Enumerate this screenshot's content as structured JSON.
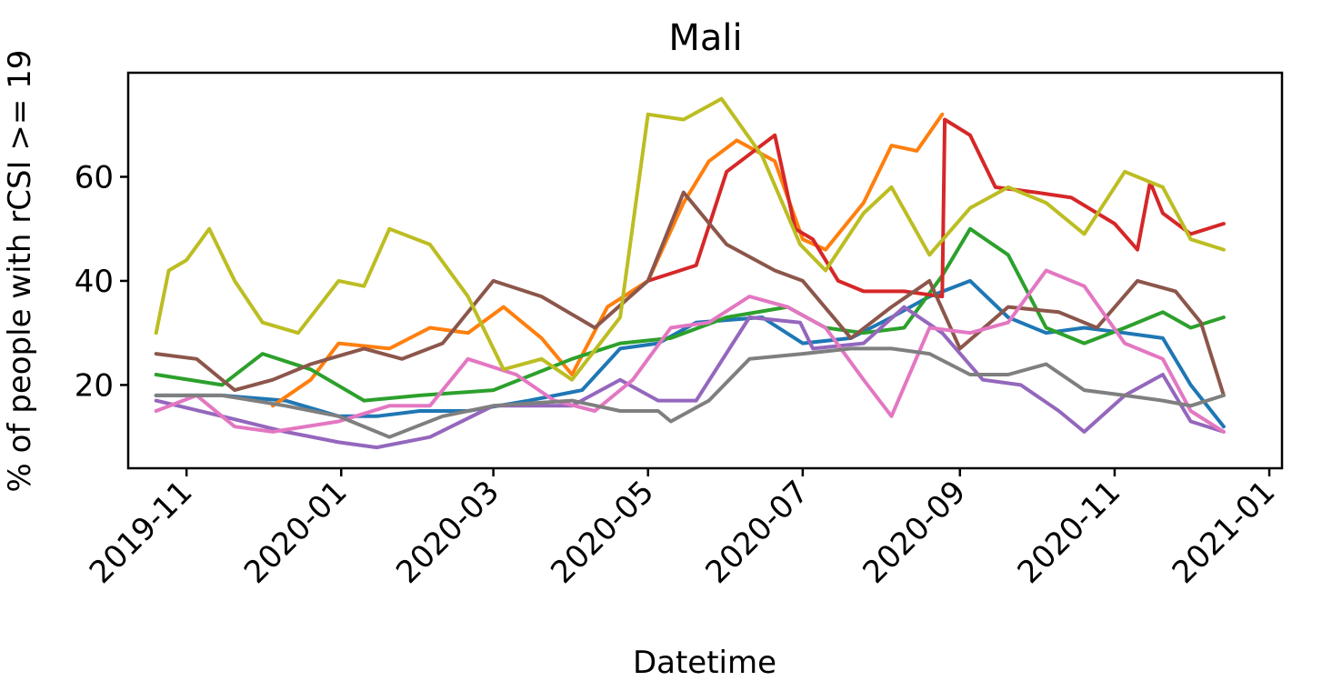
{
  "chart_data": {
    "type": "line",
    "title": "Mali",
    "xlabel": "Datetime",
    "ylabel": "% of people with rCSI >= 19",
    "xlim": [
      "2019-10-09",
      "2021-01-06"
    ],
    "ylim": [
      4,
      80
    ],
    "x_ticks": [
      "2019-11-01",
      "2020-01-01",
      "2020-03-01",
      "2020-05-01",
      "2020-07-01",
      "2020-09-01",
      "2020-11-01",
      "2021-01-01"
    ],
    "x_tick_labels": [
      "2019-11",
      "2020-01",
      "2020-03",
      "2020-05",
      "2020-07",
      "2020-09",
      "2020-11",
      "2021-01"
    ],
    "y_ticks": [
      20,
      40,
      60
    ],
    "grid": false,
    "legend": false,
    "series": [
      {
        "color": "#1f77b4",
        "x": [
          "2019-10-20",
          "2019-11-15",
          "2019-12-10",
          "2019-12-31",
          "2020-01-15",
          "2020-02-01",
          "2020-02-20",
          "2020-03-15",
          "2020-04-05",
          "2020-04-20",
          "2020-05-05",
          "2020-05-20",
          "2020-06-15",
          "2020-07-01",
          "2020-07-20",
          "2020-08-05",
          "2020-08-20",
          "2020-09-05",
          "2020-09-20",
          "2020-10-05",
          "2020-10-20",
          "2020-11-05",
          "2020-11-20",
          "2020-12-01",
          "2020-12-14"
        ],
        "y": [
          18,
          18,
          17,
          14,
          14,
          15,
          15,
          17,
          19,
          27,
          28,
          32,
          33,
          28,
          29,
          33,
          37,
          40,
          33,
          30,
          31,
          30,
          29,
          20,
          12
        ]
      },
      {
        "color": "#ff7f0e",
        "x": [
          "2019-12-05",
          "2019-12-20",
          "2019-12-31",
          "2020-01-20",
          "2020-02-05",
          "2020-02-20",
          "2020-03-05",
          "2020-03-20",
          "2020-04-01",
          "2020-04-15",
          "2020-05-01",
          "2020-05-15",
          "2020-05-25",
          "2020-06-05",
          "2020-06-20",
          "2020-07-01",
          "2020-07-10",
          "2020-07-25",
          "2020-08-05",
          "2020-08-15",
          "2020-08-25"
        ],
        "y": [
          16,
          21,
          28,
          27,
          31,
          30,
          35,
          29,
          22,
          35,
          40,
          55,
          63,
          67,
          63,
          48,
          46,
          55,
          66,
          65,
          72
        ]
      },
      {
        "color": "#2ca02c",
        "x": [
          "2019-10-20",
          "2019-11-15",
          "2019-12-01",
          "2019-12-20",
          "2020-01-10",
          "2020-02-01",
          "2020-03-01",
          "2020-04-01",
          "2020-04-20",
          "2020-05-10",
          "2020-06-01",
          "2020-06-25",
          "2020-07-10",
          "2020-07-25",
          "2020-08-10",
          "2020-08-25",
          "2020-09-05",
          "2020-09-20",
          "2020-10-05",
          "2020-10-20",
          "2020-11-05",
          "2020-11-20",
          "2020-12-01",
          "2020-12-14"
        ],
        "y": [
          22,
          20,
          26,
          23,
          17,
          18,
          19,
          25,
          28,
          29,
          33,
          35,
          31,
          30,
          31,
          41,
          50,
          45,
          31,
          28,
          31,
          34,
          31,
          33
        ]
      },
      {
        "color": "#d62728",
        "x": [
          "2020-05-01",
          "2020-05-20",
          "2020-06-01",
          "2020-06-20",
          "2020-06-28",
          "2020-07-05",
          "2020-07-15",
          "2020-07-25",
          "2020-08-10",
          "2020-08-25",
          "2020-08-26",
          "2020-09-05",
          "2020-09-15",
          "2020-10-01",
          "2020-10-15",
          "2020-11-01",
          "2020-11-10",
          "2020-11-15",
          "2020-11-20",
          "2020-12-01",
          "2020-12-14"
        ],
        "y": [
          40,
          43,
          61,
          68,
          50,
          48,
          40,
          38,
          38,
          37,
          71,
          68,
          58,
          57,
          56,
          51,
          46,
          59,
          53,
          49,
          51
        ]
      },
      {
        "color": "#9467bd",
        "x": [
          "2019-10-20",
          "2019-11-15",
          "2019-12-10",
          "2019-12-31",
          "2020-01-15",
          "2020-02-05",
          "2020-03-01",
          "2020-04-01",
          "2020-04-20",
          "2020-05-05",
          "2020-05-20",
          "2020-06-10",
          "2020-06-30",
          "2020-07-05",
          "2020-07-25",
          "2020-08-10",
          "2020-08-25",
          "2020-09-10",
          "2020-09-25",
          "2020-10-10",
          "2020-10-20",
          "2020-11-05",
          "2020-11-20",
          "2020-12-01",
          "2020-12-14"
        ],
        "y": [
          17,
          14,
          11,
          9,
          8,
          10,
          16,
          16,
          21,
          17,
          17,
          33,
          32,
          27,
          28,
          35,
          30,
          21,
          20,
          15,
          11,
          18,
          22,
          13,
          11
        ]
      },
      {
        "color": "#8c564b",
        "x": [
          "2019-10-20",
          "2019-11-05",
          "2019-11-20",
          "2019-12-05",
          "2019-12-20",
          "2020-01-10",
          "2020-01-25",
          "2020-02-10",
          "2020-03-01",
          "2020-03-20",
          "2020-04-10",
          "2020-05-01",
          "2020-05-15",
          "2020-06-01",
          "2020-06-20",
          "2020-07-01",
          "2020-07-20",
          "2020-08-05",
          "2020-08-20",
          "2020-09-01",
          "2020-09-20",
          "2020-10-10",
          "2020-10-25",
          "2020-11-10",
          "2020-11-25",
          "2020-12-05",
          "2020-12-14"
        ],
        "y": [
          26,
          25,
          19,
          21,
          24,
          27,
          25,
          28,
          40,
          37,
          31,
          40,
          57,
          47,
          42,
          40,
          29,
          35,
          40,
          27,
          35,
          34,
          31,
          40,
          38,
          32,
          18
        ]
      },
      {
        "color": "#e377c2",
        "x": [
          "2019-10-20",
          "2019-11-05",
          "2019-11-20",
          "2019-12-05",
          "2019-12-31",
          "2020-01-20",
          "2020-02-05",
          "2020-02-20",
          "2020-03-10",
          "2020-03-25",
          "2020-04-10",
          "2020-04-25",
          "2020-05-10",
          "2020-05-25",
          "2020-06-10",
          "2020-06-25",
          "2020-07-10",
          "2020-07-25",
          "2020-08-05",
          "2020-08-20",
          "2020-09-05",
          "2020-09-20",
          "2020-10-05",
          "2020-10-20",
          "2020-11-05",
          "2020-11-20",
          "2020-12-01",
          "2020-12-14"
        ],
        "y": [
          15,
          18,
          12,
          11,
          13,
          16,
          16,
          25,
          22,
          17,
          15,
          21,
          31,
          32,
          37,
          35,
          31,
          21,
          14,
          31,
          30,
          32,
          42,
          39,
          28,
          25,
          15,
          11
        ]
      },
      {
        "color": "#7f7f7f",
        "x": [
          "2019-10-20",
          "2019-11-15",
          "2019-12-10",
          "2019-12-31",
          "2020-01-20",
          "2020-02-10",
          "2020-03-01",
          "2020-04-01",
          "2020-04-20",
          "2020-05-05",
          "2020-05-10",
          "2020-05-25",
          "2020-06-10",
          "2020-07-01",
          "2020-07-20",
          "2020-08-05",
          "2020-08-20",
          "2020-09-05",
          "2020-09-20",
          "2020-10-05",
          "2020-10-20",
          "2020-11-05",
          "2020-11-20",
          "2020-12-01",
          "2020-12-14"
        ],
        "y": [
          18,
          18,
          16,
          14,
          10,
          14,
          16,
          17,
          15,
          15,
          13,
          17,
          25,
          26,
          27,
          27,
          26,
          22,
          22,
          24,
          19,
          18,
          17,
          16,
          18
        ]
      },
      {
        "color": "#bcbd22",
        "x": [
          "2019-10-20",
          "2019-10-25",
          "2019-11-01",
          "2019-11-10",
          "2019-11-20",
          "2019-12-01",
          "2019-12-15",
          "2019-12-31",
          "2020-01-10",
          "2020-01-20",
          "2020-02-05",
          "2020-02-20",
          "2020-03-05",
          "2020-03-20",
          "2020-04-01",
          "2020-04-20",
          "2020-05-01",
          "2020-05-15",
          "2020-05-30",
          "2020-06-15",
          "2020-06-30",
          "2020-07-10",
          "2020-07-25",
          "2020-08-05",
          "2020-08-20",
          "2020-09-05",
          "2020-09-20",
          "2020-10-05",
          "2020-10-20",
          "2020-11-05",
          "2020-11-20",
          "2020-12-01",
          "2020-12-14"
        ],
        "y": [
          30,
          42,
          44,
          50,
          40,
          32,
          30,
          40,
          39,
          50,
          47,
          37,
          23,
          25,
          21,
          33,
          72,
          71,
          75,
          64,
          47,
          42,
          53,
          58,
          45,
          54,
          58,
          55,
          49,
          61,
          58,
          48,
          46
        ]
      }
    ]
  }
}
